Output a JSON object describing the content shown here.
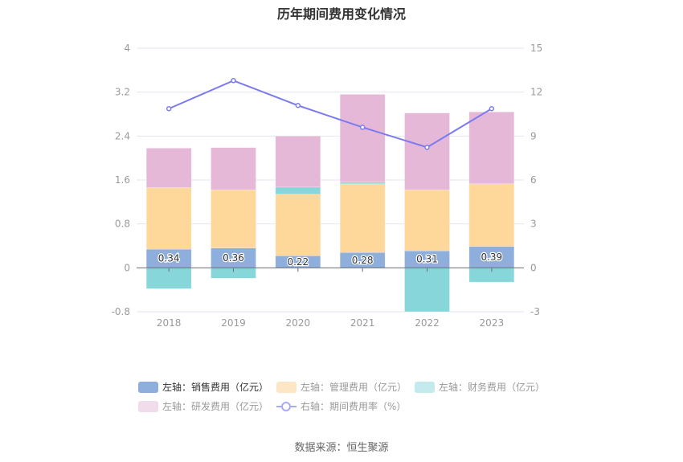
{
  "chart_data": {
    "type": "bar",
    "title": "历年期间费用变化情况",
    "categories": [
      "2018",
      "2019",
      "2020",
      "2021",
      "2022",
      "2023"
    ],
    "left_axis": {
      "ticks": [
        "4",
        "3.2",
        "2.4",
        "1.6",
        "0.8",
        "0",
        "-0.8"
      ],
      "ylim": [
        -0.8,
        4
      ]
    },
    "right_axis": {
      "ticks": [
        "15",
        "12",
        "9",
        "6",
        "3",
        "0",
        "-3"
      ],
      "ylim": [
        -3,
        15
      ]
    },
    "series": [
      {
        "name": "左轴：销售费用（亿元）",
        "type": "bar",
        "axis": "left",
        "color": "#8eaedc",
        "values": [
          0.34,
          0.36,
          0.22,
          0.28,
          0.31,
          0.39
        ],
        "labels": [
          "0.34",
          "0.36",
          "0.22",
          "0.28",
          "0.31",
          "0.39"
        ]
      },
      {
        "name": "左轴：管理费用（亿元）",
        "type": "bar",
        "axis": "left",
        "color": "#fed89b",
        "values": [
          1.12,
          1.06,
          1.12,
          1.25,
          1.11,
          1.14
        ]
      },
      {
        "name": "左轴：财务费用（亿元）",
        "type": "bar",
        "axis": "left",
        "color": "#87d6d9",
        "values": [
          -0.38,
          -0.19,
          0.13,
          0.03,
          -0.8,
          -0.26
        ]
      },
      {
        "name": "左轴：研发费用（亿元）",
        "type": "bar",
        "axis": "left",
        "color": "#e6b8d8",
        "values": [
          0.72,
          0.77,
          0.93,
          1.6,
          1.4,
          1.31
        ]
      },
      {
        "name": "右轴：期间费用率（%）",
        "type": "line",
        "axis": "right",
        "color": "#7b7bef",
        "values": [
          10.87,
          12.79,
          11.09,
          9.6,
          8.23,
          10.87
        ]
      }
    ],
    "legend_position": "bottom",
    "grid": true
  },
  "legend": [
    {
      "label": "左轴：销售费用（亿元）",
      "color": "#8eaedc",
      "active": true
    },
    {
      "label": "左轴：管理费用（亿元）",
      "color": "#fde6c3",
      "active": false
    },
    {
      "label": "左轴：财务费用（亿元）",
      "color": "#c3eaec",
      "active": false
    },
    {
      "label": "左轴：研发费用（亿元）",
      "color": "#f1dcec",
      "active": false
    },
    {
      "label": "右轴：期间费用率（%）",
      "color": "#a8a8f5",
      "active": false
    }
  ],
  "source": "数据来源：恒生聚源"
}
